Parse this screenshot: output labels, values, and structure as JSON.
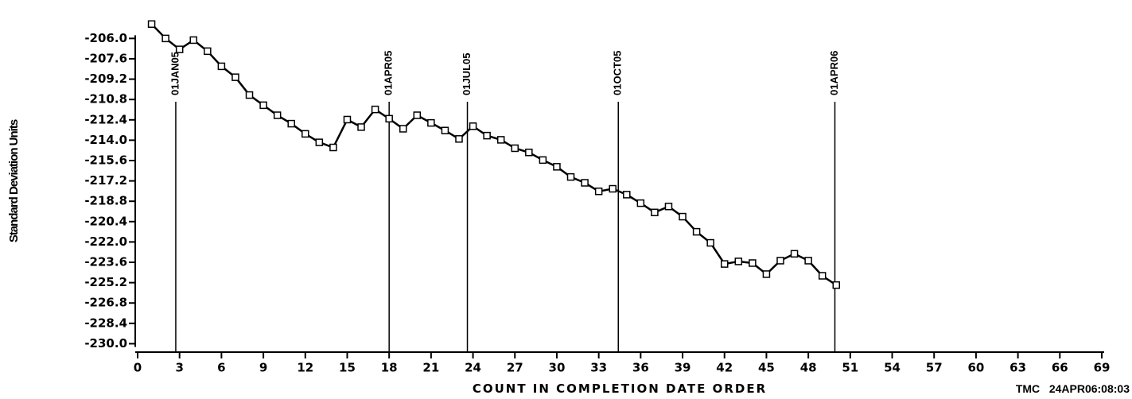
{
  "chart_data": {
    "type": "line",
    "y_label": "Standard Deviation Units",
    "x_label": "COUNT IN COMPLETION DATE ORDER",
    "footnote": "TMC   24APR06:08:03",
    "color": "#000000",
    "x": [
      1,
      2,
      3,
      4,
      5,
      6,
      7,
      8,
      9,
      10,
      11,
      12,
      13,
      14,
      15,
      16,
      17,
      18,
      19,
      20,
      21,
      22,
      23,
      24,
      25,
      26,
      27,
      28,
      29,
      30,
      31,
      32,
      33,
      34,
      35,
      36,
      37,
      38,
      39,
      40,
      41,
      42,
      43,
      44,
      45,
      46,
      47,
      48,
      49,
      50
    ],
    "values": [
      -204.87,
      -206.0,
      -206.86,
      -206.13,
      -207.0,
      -208.19,
      -209.05,
      -210.45,
      -211.25,
      -212.04,
      -212.7,
      -213.5,
      -214.17,
      -214.57,
      -212.38,
      -212.97,
      -211.58,
      -212.31,
      -213.1,
      -212.04,
      -212.64,
      -213.24,
      -213.9,
      -212.9,
      -213.64,
      -213.97,
      -214.63,
      -214.96,
      -215.56,
      -216.09,
      -216.89,
      -217.35,
      -218.02,
      -217.82,
      -218.28,
      -218.95,
      -219.68,
      -219.21,
      -220.01,
      -221.2,
      -222.07,
      -223.73,
      -223.53,
      -223.66,
      -224.53,
      -223.47,
      -222.93,
      -223.47,
      -224.66,
      -225.39
    ],
    "xlim": [
      0,
      69
    ],
    "xticks": [
      0,
      3,
      6,
      9,
      12,
      15,
      18,
      21,
      24,
      27,
      30,
      33,
      36,
      39,
      42,
      45,
      48,
      51,
      54,
      57,
      60,
      63,
      66,
      69
    ],
    "ylim": [
      -230.66,
      -204.54
    ],
    "yticks": [
      {
        "value": -206,
        "label": "-206.0"
      },
      {
        "value": -207.6,
        "label": "-207.6"
      },
      {
        "value": -209.2,
        "label": "-209.2"
      },
      {
        "value": -210.8,
        "label": "-210.8"
      },
      {
        "value": -212.4,
        "label": "-212.4"
      },
      {
        "value": -214,
        "label": "-214.0"
      },
      {
        "value": -215.6,
        "label": "-215.6"
      },
      {
        "value": -217.2,
        "label": "-217.2"
      },
      {
        "value": -218.8,
        "label": "-218.8"
      },
      {
        "value": -220.4,
        "label": "-220.4"
      },
      {
        "value": -222,
        "label": "-222.0"
      },
      {
        "value": -223.6,
        "label": "-223.6"
      },
      {
        "value": -225.2,
        "label": "-225.2"
      },
      {
        "value": -226.8,
        "label": "-226.8"
      },
      {
        "value": -228.4,
        "label": "-228.4"
      },
      {
        "value": -230,
        "label": "-230.0"
      }
    ],
    "annotations": [
      {
        "x": 2.73,
        "label": "01JAN05"
      },
      {
        "x": 18.0,
        "label": "01APR05"
      },
      {
        "x": 23.6,
        "label": "01JUL05"
      },
      {
        "x": 34.4,
        "label": "01OCT05"
      },
      {
        "x": 49.9,
        "label": "01APR06"
      }
    ]
  }
}
